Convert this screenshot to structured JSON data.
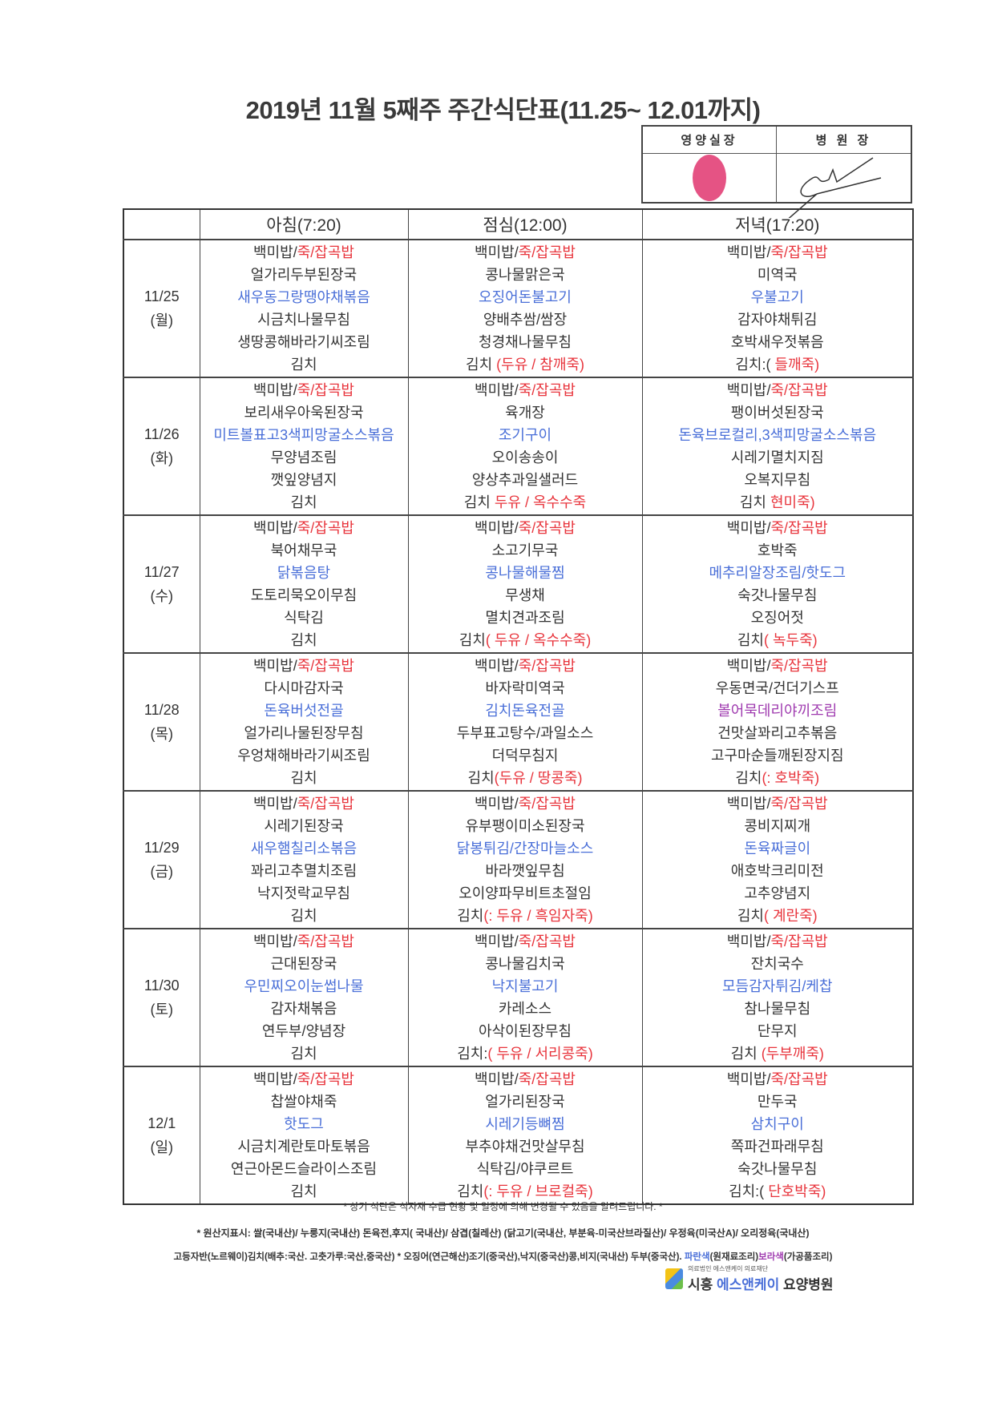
{
  "title": "2019년 11월 5째주 주간식단표(11.25~ 12.01까지)",
  "approval": {
    "nutrition_head": "영양실장",
    "director": "병 원 장"
  },
  "colors": {
    "k": "#333333",
    "r": "#e8343c",
    "b": "#4a6fd8",
    "p": "#a03cb0"
  },
  "headers": [
    "",
    "아침(7:20)",
    "점심(12:00)",
    "저녁(17:20)"
  ],
  "days": [
    {
      "date": "11/25",
      "dow": "(월)",
      "meals": [
        [
          [
            {
              "t": "백미밥/",
              "c": "k"
            },
            {
              "t": "죽/잡곡밥",
              "c": "r"
            }
          ],
          [
            {
              "t": "얼가리두부된장국",
              "c": "k"
            }
          ],
          [
            {
              "t": "새우동그랑땡야채볶음",
              "c": "b"
            }
          ],
          [
            {
              "t": "시금치나물무침",
              "c": "k"
            }
          ],
          [
            {
              "t": "생땅콩해바라기씨조림",
              "c": "k"
            }
          ],
          [
            {
              "t": "김치",
              "c": "k"
            }
          ]
        ],
        [
          [
            {
              "t": "백미밥/",
              "c": "k"
            },
            {
              "t": "죽/잡곡밥",
              "c": "r"
            }
          ],
          [
            {
              "t": "콩나물맑은국",
              "c": "k"
            }
          ],
          [
            {
              "t": "오징어돈불고기",
              "c": "b"
            }
          ],
          [
            {
              "t": "양배추쌈/쌈장",
              "c": "k"
            }
          ],
          [
            {
              "t": "청경채나물무침",
              "c": "k"
            }
          ],
          [
            {
              "t": "김치 ",
              "c": "k"
            },
            {
              "t": "(두유 / 참깨죽)",
              "c": "r"
            }
          ]
        ],
        [
          [
            {
              "t": "백미밥/",
              "c": "k"
            },
            {
              "t": "죽/잡곡밥",
              "c": "r"
            }
          ],
          [
            {
              "t": "미역국",
              "c": "k"
            }
          ],
          [
            {
              "t": "우불고기",
              "c": "b"
            }
          ],
          [
            {
              "t": "감자야채튀김",
              "c": "k"
            }
          ],
          [
            {
              "t": "호박새우젓볶음",
              "c": "k"
            }
          ],
          [
            {
              "t": "김치:( ",
              "c": "k"
            },
            {
              "t": "들깨죽)",
              "c": "r"
            }
          ]
        ]
      ]
    },
    {
      "date": "11/26",
      "dow": "(화)",
      "meals": [
        [
          [
            {
              "t": "백미밥/",
              "c": "k"
            },
            {
              "t": "죽/잡곡밥",
              "c": "r"
            }
          ],
          [
            {
              "t": "보리새우아욱된장국",
              "c": "k"
            }
          ],
          [
            {
              "t": "미트볼표고3색피망굴소스볶음",
              "c": "b"
            }
          ],
          [
            {
              "t": "무양념조림",
              "c": "k"
            }
          ],
          [
            {
              "t": "깻잎양념지",
              "c": "k"
            }
          ],
          [
            {
              "t": "김치",
              "c": "k"
            }
          ]
        ],
        [
          [
            {
              "t": "백미밥/",
              "c": "k"
            },
            {
              "t": "죽/잡곡밥",
              "c": "r"
            }
          ],
          [
            {
              "t": "육개장",
              "c": "k"
            }
          ],
          [
            {
              "t": "조기구이",
              "c": "b"
            }
          ],
          [
            {
              "t": "오이송송이",
              "c": "k"
            }
          ],
          [
            {
              "t": "양상추과일샐러드",
              "c": "k"
            }
          ],
          [
            {
              "t": "김치 ",
              "c": "k"
            },
            {
              "t": "두유 / 옥수수죽",
              "c": "r"
            }
          ]
        ],
        [
          [
            {
              "t": "백미밥/",
              "c": "k"
            },
            {
              "t": "죽/잡곡밥",
              "c": "r"
            }
          ],
          [
            {
              "t": "팽이버섯된장국",
              "c": "k"
            }
          ],
          [
            {
              "t": "돈육브로컬리,3색피망굴소스볶음",
              "c": "b"
            }
          ],
          [
            {
              "t": "시레기멸치지짐",
              "c": "k"
            }
          ],
          [
            {
              "t": "오복지무침",
              "c": "k"
            }
          ],
          [
            {
              "t": "김치 ",
              "c": "k"
            },
            {
              "t": "현미죽)",
              "c": "r"
            }
          ]
        ]
      ]
    },
    {
      "date": "11/27",
      "dow": "(수)",
      "meals": [
        [
          [
            {
              "t": "백미밥/",
              "c": "k"
            },
            {
              "t": "죽/잡곡밥",
              "c": "r"
            }
          ],
          [
            {
              "t": "북어채무국",
              "c": "k"
            }
          ],
          [
            {
              "t": "닭볶음탕",
              "c": "b"
            }
          ],
          [
            {
              "t": "도토리묵오이무침",
              "c": "k"
            }
          ],
          [
            {
              "t": "식탁김",
              "c": "k"
            }
          ],
          [
            {
              "t": "김치",
              "c": "k"
            }
          ]
        ],
        [
          [
            {
              "t": "백미밥/",
              "c": "k"
            },
            {
              "t": "죽/잡곡밥",
              "c": "r"
            }
          ],
          [
            {
              "t": "소고기무국",
              "c": "k"
            }
          ],
          [
            {
              "t": "콩나물해물찜",
              "c": "b"
            }
          ],
          [
            {
              "t": "무생채",
              "c": "k"
            }
          ],
          [
            {
              "t": "멸치견과조림",
              "c": "k"
            }
          ],
          [
            {
              "t": "김치",
              "c": "k"
            },
            {
              "t": "( 두유 / 옥수수죽)",
              "c": "r"
            }
          ]
        ],
        [
          [
            {
              "t": "백미밥/",
              "c": "k"
            },
            {
              "t": "죽/잡곡밥",
              "c": "r"
            }
          ],
          [
            {
              "t": "호박죽",
              "c": "k"
            }
          ],
          [
            {
              "t": "메추리알장조림/핫도그",
              "c": "b"
            }
          ],
          [
            {
              "t": "숙갓나물무침",
              "c": "k"
            }
          ],
          [
            {
              "t": "오징어젓",
              "c": "k"
            }
          ],
          [
            {
              "t": "김치",
              "c": "k"
            },
            {
              "t": "( 녹두죽)",
              "c": "r"
            }
          ]
        ]
      ]
    },
    {
      "date": "11/28",
      "dow": "(목)",
      "meals": [
        [
          [
            {
              "t": "백미밥/",
              "c": "k"
            },
            {
              "t": "죽/잡곡밥",
              "c": "r"
            }
          ],
          [
            {
              "t": "다시마감자국",
              "c": "k"
            }
          ],
          [
            {
              "t": "돈육버섯전골",
              "c": "b"
            }
          ],
          [
            {
              "t": "얼가리나물된장무침",
              "c": "k"
            }
          ],
          [
            {
              "t": "우엉채해바라기씨조림",
              "c": "k"
            }
          ],
          [
            {
              "t": "김치",
              "c": "k"
            }
          ]
        ],
        [
          [
            {
              "t": "백미밥/",
              "c": "k"
            },
            {
              "t": "죽/잡곡밥",
              "c": "r"
            }
          ],
          [
            {
              "t": "바자락미역국",
              "c": "k"
            }
          ],
          [
            {
              "t": "김치돈육전골",
              "c": "b"
            }
          ],
          [
            {
              "t": "두부표고탕수/과일소스",
              "c": "k"
            }
          ],
          [
            {
              "t": "더덕무침지",
              "c": "k"
            }
          ],
          [
            {
              "t": "김치",
              "c": "k"
            },
            {
              "t": "(두유 / 땅콩죽)",
              "c": "r"
            }
          ]
        ],
        [
          [
            {
              "t": "백미밥/",
              "c": "k"
            },
            {
              "t": "죽/잡곡밥",
              "c": "r"
            }
          ],
          [
            {
              "t": "우동면국/건더기스프",
              "c": "k"
            }
          ],
          [
            {
              "t": "볼어묵데리야끼조림",
              "c": "p"
            }
          ],
          [
            {
              "t": "건맛살꽈리고추볶음",
              "c": "k"
            }
          ],
          [
            {
              "t": "고구마순들깨된장지짐",
              "c": "k"
            }
          ],
          [
            {
              "t": "김치",
              "c": "k"
            },
            {
              "t": "(: 호박죽)",
              "c": "r"
            }
          ]
        ]
      ]
    },
    {
      "date": "11/29",
      "dow": "(금)",
      "meals": [
        [
          [
            {
              "t": "백미밥/",
              "c": "k"
            },
            {
              "t": "죽/잡곡밥",
              "c": "r"
            }
          ],
          [
            {
              "t": "시레기된장국",
              "c": "k"
            }
          ],
          [
            {
              "t": "새우햄칠리소볶음",
              "c": "b"
            }
          ],
          [
            {
              "t": "꽈리고추멸치조림",
              "c": "k"
            }
          ],
          [
            {
              "t": "낙지젓락교무침",
              "c": "k"
            }
          ],
          [
            {
              "t": "김치",
              "c": "k"
            }
          ]
        ],
        [
          [
            {
              "t": "백미밥/",
              "c": "k"
            },
            {
              "t": "죽/잡곡밥",
              "c": "r"
            }
          ],
          [
            {
              "t": "유부팽이미소된장국",
              "c": "k"
            }
          ],
          [
            {
              "t": "닭봉튀김/간장마늘소스",
              "c": "b"
            }
          ],
          [
            {
              "t": "바라깻잎무침",
              "c": "k"
            }
          ],
          [
            {
              "t": "오이양파무비트초절임",
              "c": "k"
            }
          ],
          [
            {
              "t": "김치",
              "c": "k"
            },
            {
              "t": "(: 두유 / 흑임자죽)",
              "c": "r"
            }
          ]
        ],
        [
          [
            {
              "t": "백미밥/",
              "c": "k"
            },
            {
              "t": "죽/잡곡밥",
              "c": "r"
            }
          ],
          [
            {
              "t": "콩비지찌개",
              "c": "k"
            }
          ],
          [
            {
              "t": "돈육짜글이",
              "c": "b"
            }
          ],
          [
            {
              "t": "애호박크리미전",
              "c": "k"
            }
          ],
          [
            {
              "t": "고추양념지",
              "c": "k"
            }
          ],
          [
            {
              "t": "김치",
              "c": "k"
            },
            {
              "t": "( 계란죽)",
              "c": "r"
            }
          ]
        ]
      ]
    },
    {
      "date": "11/30",
      "dow": "(토)",
      "meals": [
        [
          [
            {
              "t": "백미밥/",
              "c": "k"
            },
            {
              "t": "죽/잡곡밥",
              "c": "r"
            }
          ],
          [
            {
              "t": "근대된장국",
              "c": "k"
            }
          ],
          [
            {
              "t": "우민찌오이눈썹나물",
              "c": "b"
            }
          ],
          [
            {
              "t": "감자채볶음",
              "c": "k"
            }
          ],
          [
            {
              "t": "연두부/양념장",
              "c": "k"
            }
          ],
          [
            {
              "t": "김치",
              "c": "k"
            }
          ]
        ],
        [
          [
            {
              "t": "백미밥/",
              "c": "k"
            },
            {
              "t": "죽/잡곡밥",
              "c": "r"
            }
          ],
          [
            {
              "t": "콩나물김치국",
              "c": "k"
            }
          ],
          [
            {
              "t": "낙지불고기",
              "c": "b"
            }
          ],
          [
            {
              "t": "카레소스",
              "c": "k"
            }
          ],
          [
            {
              "t": "아삭이된장무침",
              "c": "k"
            }
          ],
          [
            {
              "t": "김치:",
              "c": "k"
            },
            {
              "t": "( 두유 / 서리콩죽)",
              "c": "r"
            }
          ]
        ],
        [
          [
            {
              "t": "백미밥/",
              "c": "k"
            },
            {
              "t": "죽/잡곡밥",
              "c": "r"
            }
          ],
          [
            {
              "t": "잔치국수",
              "c": "k"
            }
          ],
          [
            {
              "t": "모듬감자튀김/케찹",
              "c": "b"
            }
          ],
          [
            {
              "t": "참나물무침",
              "c": "k"
            }
          ],
          [
            {
              "t": "단무지",
              "c": "k"
            }
          ],
          [
            {
              "t": "김치 ",
              "c": "k"
            },
            {
              "t": "(두부깨죽)",
              "c": "r"
            }
          ]
        ]
      ]
    },
    {
      "date": "12/1",
      "dow": "(일)",
      "meals": [
        [
          [
            {
              "t": "백미밥/",
              "c": "k"
            },
            {
              "t": "죽/잡곡밥",
              "c": "r"
            }
          ],
          [
            {
              "t": "찹쌀야채죽",
              "c": "k"
            }
          ],
          [
            {
              "t": "핫도그",
              "c": "b"
            }
          ],
          [
            {
              "t": "시금치계란토마토볶음",
              "c": "k"
            }
          ],
          [
            {
              "t": "연근아몬드슬라이스조림",
              "c": "k"
            }
          ],
          [
            {
              "t": "김치",
              "c": "k"
            }
          ]
        ],
        [
          [
            {
              "t": "백미밥/",
              "c": "k"
            },
            {
              "t": "죽/잡곡밥",
              "c": "r"
            }
          ],
          [
            {
              "t": "얼가리된장국",
              "c": "k"
            }
          ],
          [
            {
              "t": "시레기등뼈찜",
              "c": "b"
            }
          ],
          [
            {
              "t": "부추야채건맛살무침",
              "c": "k"
            }
          ],
          [
            {
              "t": "식탁김/야쿠르트",
              "c": "k"
            }
          ],
          [
            {
              "t": "김치",
              "c": "k"
            },
            {
              "t": "(: 두유 / 브로컬죽)",
              "c": "r"
            }
          ]
        ],
        [
          [
            {
              "t": "백미밥/",
              "c": "k"
            },
            {
              "t": "죽/잡곡밥",
              "c": "r"
            }
          ],
          [
            {
              "t": "만두국",
              "c": "k"
            }
          ],
          [
            {
              "t": "삼치구이",
              "c": "b"
            }
          ],
          [
            {
              "t": "쪽파건파래무침",
              "c": "k"
            }
          ],
          [
            {
              "t": "숙갓나물무침",
              "c": "k"
            }
          ],
          [
            {
              "t": "김치:( ",
              "c": "k"
            },
            {
              "t": "단호박죽)",
              "c": "r"
            }
          ]
        ]
      ]
    }
  ],
  "footer": {
    "notice": "* 상기 식단은 식자재 수급 현황 및 일정에 의해 변경될 수 있음을 알려드립니다. *",
    "origin_1": "* 원산지표시: 쌀(국내산)/ 누룽지(국내산) 돈육전,후지( 국내산)/ 삼겹(칠레산) (닭고기(국내산, 부분육-미국산브라질산)/ 우정육(미국산A)/ 오리정육(국내산)",
    "origin_2": [
      {
        "t": "고등자반(노르웨이)김치(배추:국산. 고춧가루:국산,중국산) * 오징어(연근해산)조기(중국산),낙지(중국산)콩,비지(국내산) 두부(중국산). ",
        "c": "k"
      },
      {
        "t": "파란색",
        "c": "b"
      },
      {
        "t": "(원재료조리)",
        "c": "k"
      },
      {
        "t": "보라색",
        "c": "p"
      },
      {
        "t": "(가공품조리)",
        "c": "k"
      }
    ]
  },
  "logo": {
    "org": "의료법인 에스앤케이 의료재단",
    "city": "시흥",
    "brand": "에스앤케이",
    "suffix": "요양병원"
  }
}
